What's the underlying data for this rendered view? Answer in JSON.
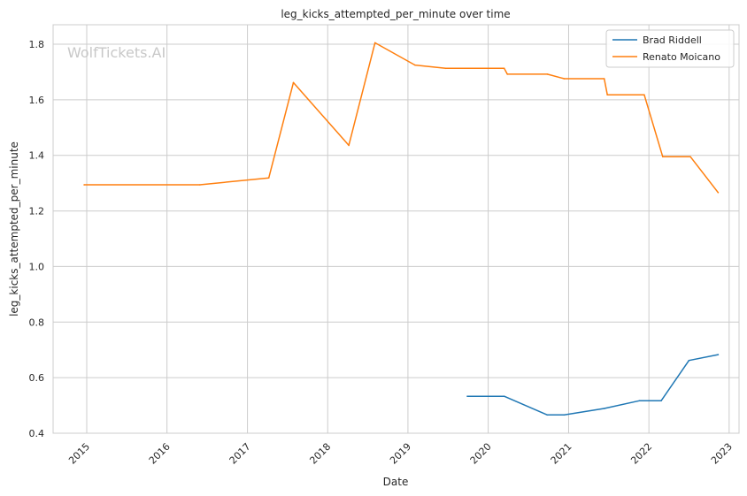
{
  "chart_data": {
    "type": "line",
    "title": "leg_kicks_attempted_per_minute over time",
    "xlabel": "Date",
    "ylabel": "leg_kicks_attempted_per_minute",
    "watermark": "WolfTickets.AI",
    "xlim": [
      "2014-08-01",
      "2023-02-15"
    ],
    "ylim": [
      0.4,
      1.87
    ],
    "x_ticks": [
      "2015",
      "2016",
      "2017",
      "2018",
      "2019",
      "2020",
      "2021",
      "2022",
      "2023"
    ],
    "y_ticks": [
      "0.4",
      "0.6",
      "0.8",
      "1.0",
      "1.2",
      "1.4",
      "1.6",
      "1.8"
    ],
    "grid": true,
    "legend_position": "top-right",
    "series": [
      {
        "name": "Brad Riddell",
        "color": "#1f77b4",
        "points": [
          [
            "2019-09-28",
            0.533
          ],
          [
            "2020-03-14",
            0.533
          ],
          [
            "2020-09-26",
            0.466
          ],
          [
            "2020-12-12",
            0.466
          ],
          [
            "2021-06-12",
            0.489
          ],
          [
            "2021-11-20",
            0.517
          ],
          [
            "2022-02-26",
            0.517
          ],
          [
            "2022-07-02",
            0.662
          ],
          [
            "2022-11-12",
            0.683
          ]
        ]
      },
      {
        "name": "Renato Moicano",
        "color": "#ff7f0e",
        "points": [
          [
            "2014-12-20",
            1.294
          ],
          [
            "2016-05-29",
            1.294
          ],
          [
            "2017-04-08",
            1.319
          ],
          [
            "2017-07-29",
            1.662
          ],
          [
            "2018-04-07",
            1.436
          ],
          [
            "2018-08-04",
            1.805
          ],
          [
            "2019-02-02",
            1.725
          ],
          [
            "2019-06-22",
            1.713
          ],
          [
            "2020-03-14",
            1.713
          ],
          [
            "2020-03-28",
            1.692
          ],
          [
            "2020-09-26",
            1.692
          ],
          [
            "2020-12-12",
            1.676
          ],
          [
            "2021-06-12",
            1.676
          ],
          [
            "2021-06-26",
            1.618
          ],
          [
            "2021-12-11",
            1.618
          ],
          [
            "2022-03-05",
            1.395
          ],
          [
            "2022-07-09",
            1.395
          ],
          [
            "2022-11-12",
            1.266
          ]
        ]
      }
    ]
  }
}
